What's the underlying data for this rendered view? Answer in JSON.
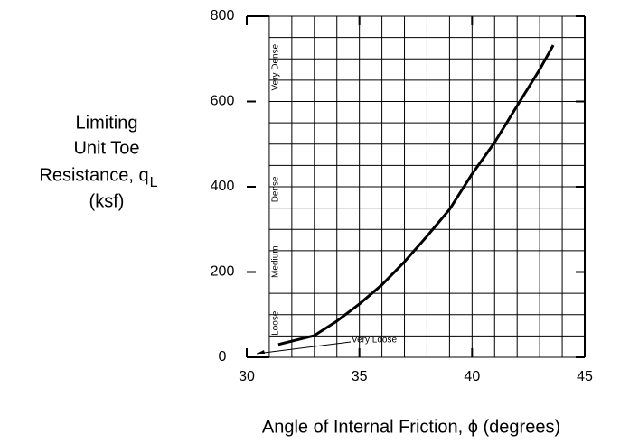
{
  "chart_data": {
    "type": "line",
    "xlabel": "Angle of Internal Friction, ϕ (degrees)",
    "ylabel": [
      "Limiting",
      "Unit Toe",
      "Resistance, q",
      "(ksf)"
    ],
    "ylabel_subscript": "L",
    "xlim": [
      30,
      45
    ],
    "ylim": [
      0,
      800
    ],
    "xticks": [
      30,
      35,
      40,
      45
    ],
    "yticks": [
      0,
      200,
      400,
      600,
      800
    ],
    "xgrid": [
      31,
      32,
      33,
      34,
      35,
      36,
      37,
      38,
      39,
      40,
      41,
      42,
      43,
      44,
      45
    ],
    "ygrid": [
      0,
      50,
      100,
      150,
      200,
      250,
      300,
      350,
      400,
      450,
      500,
      550,
      600,
      650,
      700,
      750,
      800
    ],
    "grid": true,
    "annotations": [
      "Very Dense",
      "Dense",
      "Medium",
      "Loose",
      "Very Loose"
    ],
    "series": [
      {
        "color": "#000000",
        "x": [
          31.4,
          33,
          34,
          35,
          36,
          37,
          38,
          39,
          40,
          41,
          42,
          43,
          43.6
        ],
        "values": [
          30,
          51,
          85,
          125,
          170,
          224,
          284,
          347,
          430,
          504,
          590,
          675,
          732
        ]
      }
    ]
  }
}
